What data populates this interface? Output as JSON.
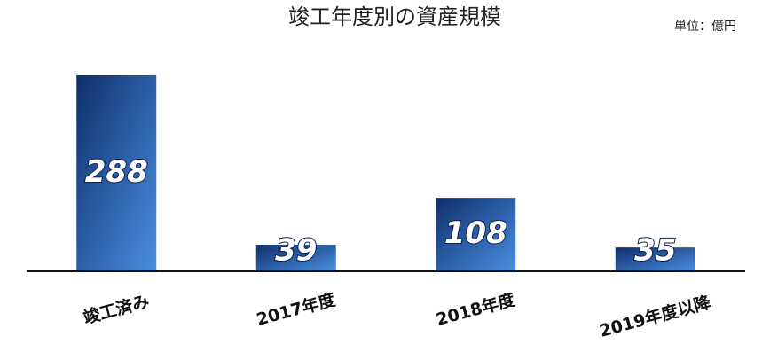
{
  "chart_data": {
    "type": "bar",
    "title": "竣工年度別の資産規模",
    "unit_label": "単位：億円",
    "categories": [
      "竣工済み",
      "2017年度",
      "2018年度",
      "2019年度以降"
    ],
    "values": [
      288,
      39,
      108,
      35
    ],
    "color_top": "#0e2f6b",
    "color_bottom": "#4a8fe0"
  }
}
